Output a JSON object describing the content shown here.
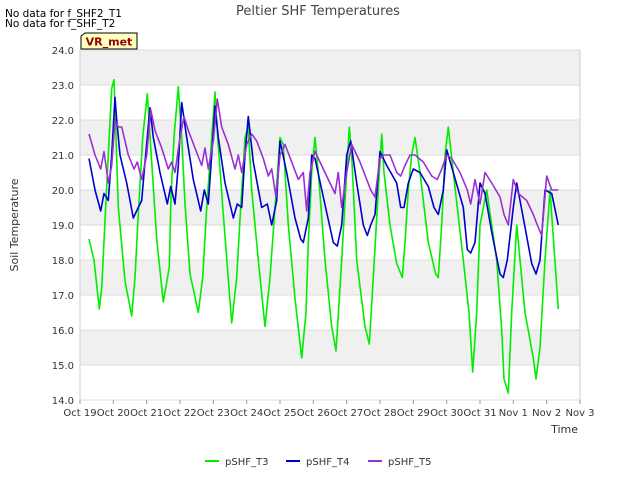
{
  "notices": [
    "No data for f_SHF2_T1",
    "No data for f_SHF_T2"
  ],
  "badge": "VR_met",
  "chart_data": {
    "type": "line",
    "title": "Peltier SHF Temperatures",
    "xlabel": "Time",
    "ylabel": "Soil Temperature",
    "ylim": [
      14.0,
      24.0
    ],
    "yticks": [
      14.0,
      15.0,
      16.0,
      17.0,
      18.0,
      19.0,
      20.0,
      21.0,
      22.0,
      23.0,
      24.0
    ],
    "xlim": [
      0,
      15
    ],
    "xticks": [
      "Oct 19",
      "Oct 20",
      "Oct 21",
      "Oct 22",
      "Oct 23",
      "Oct 24",
      "Oct 25",
      "Oct 26",
      "Oct 27",
      "Oct 28",
      "Oct 29",
      "Oct 30",
      "Oct 31",
      "Nov 1",
      "Nov 2",
      "Nov 3"
    ],
    "grid": true,
    "legend": "bottom",
    "series": [
      {
        "name": "pSHF_T3",
        "color": "#00ee00",
        "x": [
          0.27,
          0.42,
          0.58,
          0.65,
          0.8,
          0.95,
          1.02,
          1.08,
          1.15,
          1.35,
          1.55,
          1.65,
          1.73,
          1.88,
          2.02,
          2.15,
          2.3,
          2.5,
          2.68,
          2.73,
          2.82,
          2.95,
          3.05,
          3.15,
          3.3,
          3.55,
          3.68,
          3.8,
          3.95,
          4.05,
          4.13,
          4.3,
          4.55,
          4.7,
          4.82,
          4.95,
          5.05,
          5.15,
          5.35,
          5.55,
          5.7,
          5.85,
          6.0,
          6.1,
          6.25,
          6.45,
          6.65,
          6.78,
          6.85,
          6.95,
          7.05,
          7.15,
          7.35,
          7.55,
          7.68,
          7.85,
          8.0,
          8.08,
          8.15,
          8.3,
          8.55,
          8.68,
          8.8,
          8.95,
          9.05,
          9.12,
          9.3,
          9.5,
          9.67,
          9.75,
          9.85,
          9.95,
          10.05,
          10.2,
          10.45,
          10.67,
          10.75,
          10.85,
          10.95,
          11.05,
          11.2,
          11.5,
          11.67,
          11.78,
          11.9,
          12.0,
          12.2,
          12.5,
          12.65,
          12.72,
          12.85,
          12.95,
          13.1,
          13.35,
          13.6,
          13.68,
          13.8,
          13.95,
          14.1,
          14.35
        ],
        "values": [
          18.6,
          18.0,
          16.6,
          17.2,
          20.1,
          22.9,
          23.15,
          21.5,
          19.5,
          17.4,
          16.4,
          17.5,
          19.0,
          21.5,
          22.75,
          20.8,
          18.6,
          16.8,
          17.8,
          19.8,
          21.5,
          22.95,
          21.5,
          19.6,
          17.6,
          16.5,
          17.5,
          19.5,
          21.5,
          22.8,
          21.5,
          19.3,
          16.2,
          17.5,
          19.5,
          21.5,
          21.8,
          20.0,
          18.0,
          16.1,
          17.5,
          19.5,
          21.5,
          21.3,
          19.0,
          16.9,
          15.2,
          16.5,
          18.5,
          20.5,
          21.5,
          20.5,
          18.0,
          16.1,
          15.4,
          18.0,
          20.5,
          21.8,
          21.0,
          18.0,
          16.1,
          15.6,
          17.5,
          20.0,
          21.6,
          20.5,
          19.0,
          17.9,
          17.5,
          18.5,
          20.0,
          21.0,
          21.5,
          20.5,
          18.5,
          17.6,
          17.5,
          19.0,
          21.0,
          21.8,
          20.5,
          18.0,
          16.5,
          14.8,
          16.5,
          19.0,
          20.0,
          18.0,
          16.0,
          14.6,
          14.2,
          16.5,
          19.0,
          16.5,
          15.2,
          14.6,
          15.5,
          18.0,
          20.0,
          16.6
        ]
      },
      {
        "name": "pSHF_T4",
        "color": "#0000cc",
        "x": [
          0.27,
          0.45,
          0.62,
          0.72,
          0.85,
          0.95,
          1.05,
          1.1,
          1.2,
          1.4,
          1.6,
          1.75,
          1.85,
          1.95,
          2.1,
          2.2,
          2.4,
          2.62,
          2.72,
          2.85,
          2.95,
          3.05,
          3.2,
          3.4,
          3.62,
          3.73,
          3.85,
          3.95,
          4.05,
          4.15,
          4.35,
          4.6,
          4.72,
          4.85,
          4.95,
          5.05,
          5.2,
          5.45,
          5.62,
          5.75,
          5.9,
          6.0,
          6.2,
          6.45,
          6.62,
          6.7,
          6.85,
          6.95,
          7.05,
          7.3,
          7.6,
          7.72,
          7.85,
          8.0,
          8.12,
          8.3,
          8.5,
          8.62,
          8.72,
          8.85,
          9.0,
          9.2,
          9.5,
          9.62,
          9.72,
          9.85,
          10.0,
          10.2,
          10.45,
          10.62,
          10.75,
          10.9,
          11.0,
          11.2,
          11.5,
          11.62,
          11.72,
          11.85,
          12.0,
          12.15,
          12.35,
          12.6,
          12.7,
          12.82,
          13.0,
          13.1,
          13.3,
          13.55,
          13.68,
          13.8,
          13.95,
          14.15,
          14.35
        ],
        "values": [
          20.9,
          20.0,
          19.4,
          19.9,
          19.7,
          21.0,
          22.65,
          22.0,
          21.0,
          20.2,
          19.2,
          19.5,
          19.7,
          20.8,
          22.35,
          21.5,
          20.5,
          19.6,
          20.1,
          19.6,
          20.7,
          22.5,
          21.5,
          20.3,
          19.4,
          20.0,
          19.6,
          21.0,
          22.4,
          21.5,
          20.2,
          19.2,
          19.6,
          19.5,
          21.0,
          22.1,
          20.8,
          19.5,
          19.6,
          19.0,
          19.7,
          21.4,
          20.5,
          19.2,
          18.6,
          18.5,
          19.2,
          21.0,
          20.9,
          19.8,
          18.5,
          18.4,
          19.0,
          21.0,
          21.4,
          20.2,
          19.0,
          18.7,
          19.0,
          19.3,
          21.1,
          20.7,
          20.2,
          19.5,
          19.5,
          20.2,
          20.6,
          20.5,
          20.1,
          19.5,
          19.3,
          20.0,
          21.15,
          20.5,
          19.5,
          18.3,
          18.2,
          18.5,
          20.2,
          19.9,
          18.8,
          17.6,
          17.5,
          18.0,
          19.5,
          20.2,
          19.2,
          17.9,
          17.6,
          18.0,
          20.0,
          19.9,
          19.0
        ]
      },
      {
        "name": "pSHF_T5",
        "color": "#9b30d0",
        "x": [
          0.27,
          0.45,
          0.62,
          0.72,
          0.85,
          0.95,
          1.05,
          1.15,
          1.25,
          1.45,
          1.62,
          1.72,
          1.85,
          2.0,
          2.12,
          2.25,
          2.45,
          2.65,
          2.75,
          2.85,
          3.0,
          3.12,
          3.25,
          3.45,
          3.65,
          3.75,
          3.85,
          4.0,
          4.12,
          4.25,
          4.45,
          4.65,
          4.75,
          4.85,
          5.0,
          5.15,
          5.3,
          5.5,
          5.65,
          5.75,
          5.88,
          6.0,
          6.15,
          6.35,
          6.55,
          6.7,
          6.8,
          6.9,
          7.05,
          7.2,
          7.45,
          7.65,
          7.75,
          7.85,
          8.0,
          8.15,
          8.4,
          8.6,
          8.72,
          8.85,
          9.0,
          9.12,
          9.3,
          9.5,
          9.62,
          9.75,
          9.9,
          10.05,
          10.3,
          10.55,
          10.72,
          10.85,
          11.0,
          11.15,
          11.4,
          11.62,
          11.72,
          11.85,
          12.0,
          12.15,
          12.35,
          12.6,
          12.72,
          12.85,
          13.0,
          13.15,
          13.4,
          13.6,
          13.72,
          13.85,
          14.0,
          14.15,
          14.35
        ],
        "values": [
          21.6,
          21.0,
          20.6,
          21.1,
          20.2,
          20.7,
          22.0,
          21.8,
          21.8,
          21.0,
          20.6,
          20.8,
          20.3,
          21.0,
          22.3,
          21.7,
          21.2,
          20.6,
          20.8,
          20.5,
          21.5,
          22.1,
          21.7,
          21.2,
          20.7,
          21.2,
          20.6,
          21.4,
          22.6,
          21.8,
          21.3,
          20.6,
          21.0,
          20.5,
          21.3,
          21.6,
          21.4,
          20.9,
          20.4,
          20.6,
          19.8,
          21.0,
          21.3,
          20.8,
          20.3,
          20.5,
          19.4,
          20.5,
          21.1,
          20.8,
          20.3,
          19.9,
          20.5,
          19.5,
          20.5,
          21.3,
          20.8,
          20.3,
          20.0,
          19.8,
          20.9,
          21.0,
          21.0,
          20.5,
          20.4,
          20.7,
          21.0,
          21.0,
          20.8,
          20.4,
          20.3,
          20.6,
          21.0,
          20.9,
          20.5,
          20.0,
          19.6,
          20.3,
          19.6,
          20.5,
          20.2,
          19.8,
          19.3,
          19.0,
          20.3,
          19.9,
          19.7,
          19.3,
          19.0,
          18.7,
          20.4,
          20.0,
          20.0
        ]
      }
    ]
  }
}
